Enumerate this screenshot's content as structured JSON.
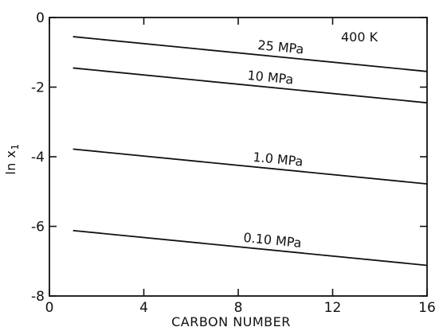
{
  "chart_data": {
    "type": "line",
    "xlabel": "CARBON NUMBER",
    "ylabel": "ln x",
    "ylabel_sub": "1",
    "xlim": [
      0,
      16
    ],
    "ylim": [
      -8,
      0
    ],
    "xticks": [
      0,
      4,
      8,
      12,
      16
    ],
    "yticks": [
      0,
      -2,
      -4,
      -6,
      -8
    ],
    "xtick_labels": [
      "0",
      "4",
      "8",
      "12",
      "16"
    ],
    "ytick_labels": [
      "0",
      "-2",
      "-4",
      "-6",
      "-8"
    ],
    "grid": false,
    "annotation": "400 K",
    "series": [
      {
        "name": "25 MPa",
        "x": [
          1,
          16
        ],
        "y": [
          -0.55,
          -1.55
        ]
      },
      {
        "name": "10 MPa",
        "x": [
          1,
          16
        ],
        "y": [
          -1.45,
          -2.45
        ]
      },
      {
        "name": "1.0 MPa",
        "x": [
          1,
          16
        ],
        "y": [
          -3.78,
          -4.78
        ]
      },
      {
        "name": "0.10 MPa",
        "x": [
          1,
          16
        ],
        "y": [
          -6.12,
          -7.12
        ]
      }
    ]
  }
}
